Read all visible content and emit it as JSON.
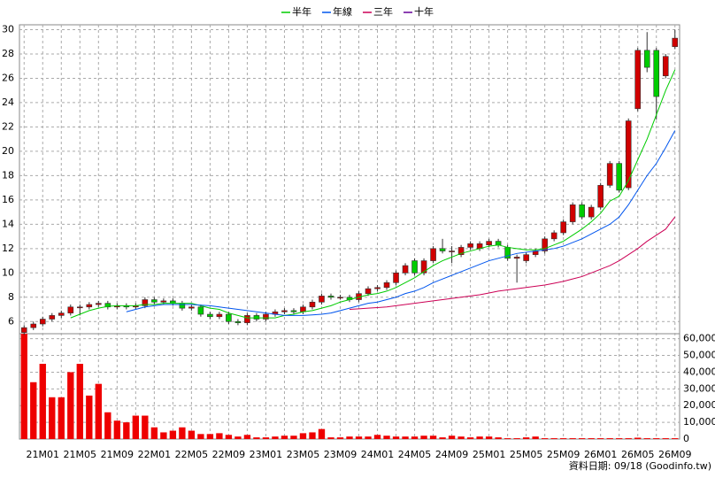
{
  "chart_data": {
    "type": "candlestick",
    "categories": [
      null,
      null,
      "21M01",
      null,
      null,
      null,
      "21M05",
      null,
      null,
      null,
      "21M09",
      null,
      null,
      null,
      "22M01",
      null,
      null,
      null,
      "22M05",
      null,
      null,
      null,
      "22M09",
      null,
      null,
      null,
      "23M01",
      null,
      null,
      null,
      "23M05",
      null,
      null,
      null,
      "23M09",
      null,
      null,
      null,
      "24M01",
      null,
      null,
      null,
      "24M05",
      null,
      null,
      null,
      "24M09",
      null,
      null,
      null,
      "25M01",
      null,
      null,
      null,
      "25M05",
      null,
      null,
      null,
      "25M09",
      null,
      null,
      null,
      "26M01",
      null,
      null,
      null,
      "26M05",
      null,
      null,
      null,
      "26M09"
    ],
    "open": [
      5.1,
      5.5,
      5.8,
      6.2,
      6.5,
      6.7,
      7.2,
      7.2,
      7.4,
      7.5,
      7.2,
      7.3,
      7.2,
      7.3,
      7.8,
      7.6,
      7.7,
      7.5,
      7.1,
      7.2,
      6.6,
      6.4,
      6.6,
      6.0,
      5.9,
      6.5,
      6.2,
      6.6,
      6.8,
      6.9,
      6.8,
      7.2,
      7.6,
      8.1,
      8.0,
      8.0,
      7.8,
      8.3,
      8.7,
      8.8,
      9.2,
      10.0,
      11.0,
      10.0,
      11.0,
      12.0,
      11.8,
      11.5,
      12.1,
      12.0,
      12.3,
      12.6,
      12.1,
      11.2,
      11.0,
      11.5,
      11.8,
      12.8,
      13.3,
      14.2,
      15.6,
      14.6,
      15.4,
      17.2,
      19.0,
      17.0,
      23.5,
      28.3,
      28.3,
      26.2,
      28.6
    ],
    "high": [
      5.7,
      6.0,
      6.4,
      6.7,
      6.9,
      7.4,
      7.4,
      7.6,
      7.7,
      7.7,
      7.5,
      7.5,
      7.5,
      8.0,
      8.0,
      7.9,
      7.9,
      7.7,
      7.4,
      7.4,
      6.8,
      6.8,
      6.8,
      6.2,
      6.7,
      6.7,
      6.8,
      7.0,
      7.1,
      7.1,
      7.4,
      7.8,
      8.3,
      8.3,
      8.2,
      8.2,
      8.5,
      8.9,
      9.0,
      9.4,
      10.2,
      10.8,
      11.2,
      11.2,
      12.2,
      12.8,
      12.2,
      12.3,
      12.6,
      12.6,
      12.8,
      12.8,
      12.3,
      11.5,
      11.7,
      12.0,
      13.0,
      13.5,
      14.4,
      15.8,
      15.8,
      15.6,
      17.4,
      19.2,
      19.2,
      22.7,
      28.5,
      29.8,
      28.5,
      28.0,
      30.0
    ],
    "low": [
      4.9,
      5.3,
      5.6,
      6.0,
      6.3,
      6.5,
      6.5,
      7.0,
      7.2,
      7.0,
      7.0,
      7.0,
      7.0,
      7.1,
      7.4,
      7.4,
      7.3,
      6.9,
      6.9,
      6.4,
      6.2,
      6.2,
      5.8,
      5.7,
      5.7,
      6.0,
      6.0,
      6.4,
      6.6,
      6.6,
      6.6,
      7.0,
      7.4,
      7.8,
      7.8,
      7.6,
      7.6,
      8.1,
      8.5,
      8.6,
      9.0,
      9.8,
      9.8,
      9.8,
      10.8,
      11.6,
      10.8,
      11.3,
      11.9,
      11.8,
      12.1,
      12.1,
      11.0,
      9.2,
      10.8,
      11.3,
      11.6,
      12.6,
      13.1,
      14.0,
      14.4,
      14.4,
      15.2,
      17.0,
      16.6,
      16.8,
      23.3,
      26.5,
      22.6,
      26.0,
      28.4
    ],
    "close": [
      5.5,
      5.8,
      6.2,
      6.5,
      6.7,
      7.2,
      7.2,
      7.4,
      7.5,
      7.2,
      7.3,
      7.2,
      7.3,
      7.8,
      7.6,
      7.7,
      7.5,
      7.1,
      7.2,
      6.6,
      6.4,
      6.6,
      6.0,
      5.9,
      6.5,
      6.2,
      6.6,
      6.8,
      6.9,
      6.8,
      7.2,
      7.6,
      8.1,
      8.0,
      8.0,
      7.8,
      8.3,
      8.7,
      8.8,
      9.2,
      10.0,
      10.6,
      10.0,
      11.0,
      12.0,
      11.8,
      11.8,
      12.1,
      12.4,
      12.4,
      12.6,
      12.3,
      11.2,
      11.3,
      11.5,
      11.8,
      12.8,
      13.3,
      14.2,
      15.6,
      14.6,
      15.4,
      17.2,
      19.0,
      16.8,
      22.5,
      28.3,
      26.9,
      24.5,
      27.8,
      29.3
    ],
    "up_color": "#d00000",
    "down_color": "#00cc00",
    "series": [
      {
        "name": "半年",
        "color": "#00cc00",
        "values": [
          null,
          null,
          null,
          null,
          null,
          6.3,
          6.6,
          6.9,
          7.1,
          7.25,
          7.3,
          7.3,
          7.3,
          7.4,
          7.4,
          7.5,
          7.5,
          7.5,
          7.5,
          7.3,
          7.1,
          7.0,
          6.7,
          6.5,
          6.3,
          6.3,
          6.3,
          6.3,
          6.5,
          6.6,
          6.8,
          6.9,
          7.1,
          7.3,
          7.6,
          7.8,
          8.0,
          8.2,
          8.3,
          8.5,
          8.8,
          9.2,
          9.6,
          10.1,
          10.6,
          11.0,
          11.3,
          11.6,
          11.8,
          12.0,
          12.2,
          12.3,
          12.1,
          12.0,
          11.9,
          11.9,
          12.0,
          12.3,
          12.6,
          13.1,
          13.6,
          14.2,
          14.9,
          15.9,
          16.3,
          17.6,
          19.3,
          21.0,
          23.0,
          25.0,
          26.7
        ]
      },
      {
        "name": "年線",
        "color": "#0055ee",
        "values": [
          null,
          null,
          null,
          null,
          null,
          null,
          null,
          null,
          null,
          null,
          null,
          6.8,
          7.0,
          7.2,
          7.3,
          7.4,
          7.4,
          7.4,
          7.4,
          7.35,
          7.3,
          7.2,
          7.1,
          7.0,
          6.9,
          6.8,
          6.7,
          6.6,
          6.5,
          6.5,
          6.5,
          6.55,
          6.6,
          6.7,
          6.9,
          7.1,
          7.3,
          7.5,
          7.6,
          7.8,
          8.0,
          8.3,
          8.5,
          8.8,
          9.2,
          9.5,
          9.8,
          10.1,
          10.4,
          10.7,
          11.0,
          11.2,
          11.4,
          11.6,
          11.7,
          11.8,
          11.9,
          12.0,
          12.2,
          12.5,
          12.8,
          13.2,
          13.6,
          14.0,
          14.6,
          15.6,
          16.8,
          18.0,
          19.0,
          20.3,
          21.7
        ]
      },
      {
        "name": "三年",
        "color": "#cc0055",
        "values": [
          null,
          null,
          null,
          null,
          null,
          null,
          null,
          null,
          null,
          null,
          null,
          null,
          null,
          null,
          null,
          null,
          null,
          null,
          null,
          null,
          null,
          null,
          null,
          null,
          null,
          null,
          null,
          null,
          null,
          null,
          null,
          null,
          null,
          null,
          null,
          7.0,
          7.05,
          7.1,
          7.15,
          7.2,
          7.3,
          7.4,
          7.5,
          7.6,
          7.7,
          7.8,
          7.9,
          8.0,
          8.1,
          8.2,
          8.35,
          8.5,
          8.6,
          8.7,
          8.8,
          8.9,
          9.0,
          9.15,
          9.3,
          9.5,
          9.7,
          10.0,
          10.3,
          10.6,
          11.0,
          11.5,
          12.0,
          12.6,
          13.1,
          13.6,
          14.6
        ]
      },
      {
        "name": "十年",
        "color": "#660099",
        "values": [
          null,
          null,
          null,
          null,
          null,
          null,
          null,
          null,
          null,
          null,
          null,
          null,
          null,
          null,
          null,
          null,
          null,
          null,
          null,
          null,
          null,
          null,
          null,
          null,
          null,
          null,
          null,
          null,
          null,
          null,
          null,
          null,
          null,
          null,
          null,
          null,
          null,
          null,
          null,
          null,
          null,
          null,
          null,
          null,
          null,
          null,
          null,
          null,
          null,
          null,
          null,
          null,
          null,
          null,
          null,
          null,
          null,
          null,
          null,
          null,
          null,
          null,
          null,
          null,
          null,
          null,
          null,
          null,
          null,
          null,
          null
        ]
      }
    ],
    "ylim": [
      5,
      30.4
    ],
    "yticks": [
      6,
      8,
      10,
      12,
      14,
      16,
      18,
      20,
      22,
      24,
      26,
      28,
      30
    ],
    "volume": {
      "color": "#ee0000",
      "values": [
        63000,
        34000,
        45000,
        25000,
        25000,
        40000,
        45000,
        26000,
        33000,
        16000,
        11000,
        10000,
        14000,
        14000,
        7000,
        4000,
        5000,
        7000,
        5000,
        3000,
        3000,
        3500,
        2500,
        1500,
        2500,
        1000,
        1000,
        1500,
        2000,
        2000,
        3500,
        4000,
        6000,
        1000,
        1000,
        1500,
        1500,
        1500,
        2500,
        2000,
        1500,
        1500,
        1500,
        2000,
        2000,
        1000,
        2000,
        1500,
        1000,
        1500,
        1500,
        1000,
        500,
        500,
        1000,
        1500,
        500,
        500,
        500,
        500,
        500,
        500,
        500,
        500,
        500,
        500,
        800,
        500,
        500,
        500,
        500
      ],
      "ylim": [
        0,
        63000
      ],
      "yticks": [
        0,
        {
          "value": 10000,
          "label": "10,000"
        },
        {
          "value": 20000,
          "label": "20,000"
        },
        {
          "value": 30000,
          "label": "30,000"
        },
        {
          "value": 40000,
          "label": "40,000"
        },
        {
          "value": 50000,
          "label": "50,000"
        },
        {
          "value": 60000,
          "label": "60,000"
        }
      ]
    },
    "grid": true,
    "footnote": "資料日期: 09/18 (Goodinfo.tw)"
  }
}
